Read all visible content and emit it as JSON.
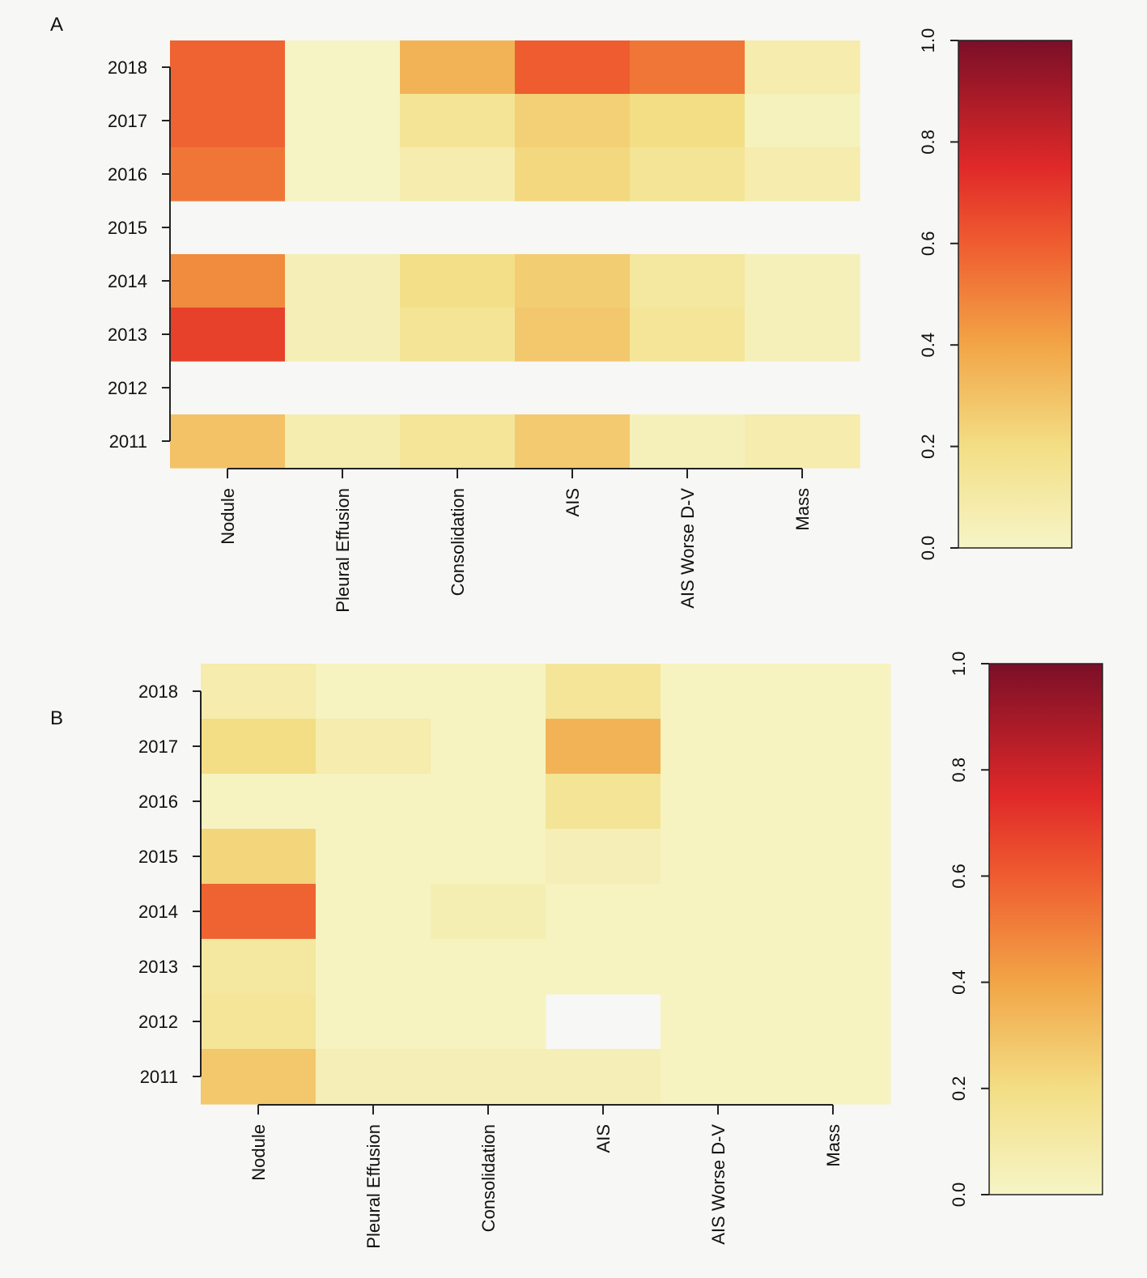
{
  "chart_data": [
    {
      "type": "heatmap",
      "panel_label": "A",
      "categories": [
        "Nodule",
        "Pleural Effusion",
        "Consolidation",
        "AIS",
        "AIS Worse D-V",
        "Mass"
      ],
      "years": [
        "2018",
        "2017",
        "2016",
        "2015",
        "2014",
        "2013",
        "2012",
        "2011"
      ],
      "values": [
        [
          0.58,
          0.01,
          0.35,
          0.6,
          0.53,
          0.08
        ],
        [
          0.58,
          0.01,
          0.15,
          0.25,
          0.2,
          0.03
        ],
        [
          0.53,
          0.01,
          0.08,
          0.22,
          0.15,
          0.08
        ],
        [
          null,
          null,
          null,
          null,
          null,
          null
        ],
        [
          0.47,
          0.05,
          0.19,
          0.26,
          0.12,
          0.04
        ],
        [
          0.68,
          0.05,
          0.15,
          0.28,
          0.14,
          0.04
        ],
        [
          null,
          null,
          null,
          null,
          null,
          null
        ],
        [
          0.3,
          0.07,
          0.14,
          0.27,
          0.04,
          0.08
        ]
      ],
      "colorbar": {
        "ticks": [
          "0.0",
          "0.2",
          "0.4",
          "0.6",
          "0.8",
          "1.0"
        ],
        "range": [
          0,
          1
        ]
      }
    },
    {
      "type": "heatmap",
      "panel_label": "B",
      "categories": [
        "Nodule",
        "Pleural Effusion",
        "Consolidation",
        "AIS",
        "AIS Worse D-V",
        "Mass"
      ],
      "years": [
        "2018",
        "2017",
        "2016",
        "2015",
        "2014",
        "2013",
        "2012",
        "2011"
      ],
      "values": [
        [
          0.08,
          0.02,
          0.02,
          0.14,
          0.02,
          0.02
        ],
        [
          0.2,
          0.08,
          0.02,
          0.35,
          0.02,
          0.02
        ],
        [
          0.02,
          0.02,
          0.02,
          0.15,
          0.02,
          0.02
        ],
        [
          0.23,
          0.02,
          0.02,
          0.05,
          0.02,
          0.02
        ],
        [
          0.58,
          0.02,
          0.06,
          0.02,
          0.02,
          0.02
        ],
        [
          0.12,
          0.02,
          0.02,
          0.02,
          0.02,
          0.02
        ],
        [
          0.14,
          0.02,
          0.02,
          null,
          0.02,
          0.02
        ],
        [
          0.28,
          0.05,
          0.05,
          0.05,
          0.02,
          0.02
        ]
      ],
      "colorbar": {
        "ticks": [
          "0.0",
          "0.2",
          "0.4",
          "0.6",
          "0.8",
          "1.0"
        ],
        "range": [
          0,
          1
        ]
      }
    }
  ]
}
